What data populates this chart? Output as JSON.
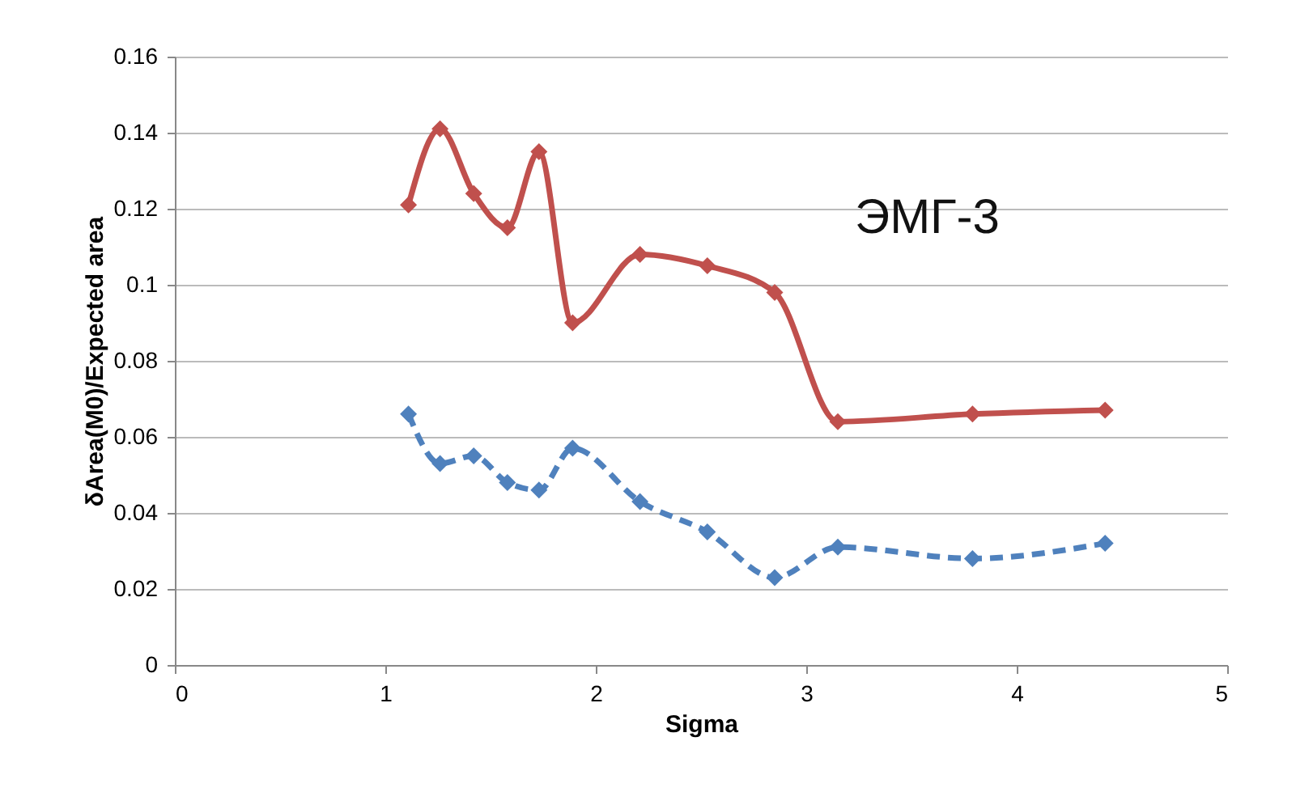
{
  "chart_data": {
    "type": "line",
    "xlabel": "Sigma",
    "ylabel": "δArea(M0)/Expected area",
    "annotations": [
      "ЭМГ-3"
    ],
    "series": [
      {
        "color": "#c0504d",
        "line_style": "solid",
        "x": [
          1.11,
          1.26,
          1.42,
          1.58,
          1.73,
          1.89,
          2.21,
          2.53,
          2.85,
          3.15,
          3.79,
          4.42
        ],
        "values": [
          0.121,
          0.141,
          0.124,
          0.115,
          0.135,
          0.09,
          0.108,
          0.105,
          0.098,
          0.064,
          0.066,
          0.067
        ]
      },
      {
        "color": "#4f81bd",
        "line_style": "dashed",
        "x": [
          1.11,
          1.26,
          1.42,
          1.58,
          1.73,
          1.89,
          2.21,
          2.53,
          2.85,
          3.15,
          3.79,
          4.42
        ],
        "values": [
          0.066,
          0.053,
          0.055,
          0.048,
          0.046,
          0.057,
          0.043,
          0.035,
          0.023,
          0.031,
          0.028,
          0.032
        ]
      }
    ],
    "marker": "diamond",
    "grid": "y",
    "xlim": [
      0,
      5
    ],
    "xticks": [
      0,
      1,
      2,
      3,
      4,
      5
    ],
    "ylim": [
      0,
      0.16
    ],
    "yticks": [
      0,
      0.02,
      0.04,
      0.06,
      0.08,
      0.1,
      0.12,
      0.14,
      0.16
    ]
  }
}
